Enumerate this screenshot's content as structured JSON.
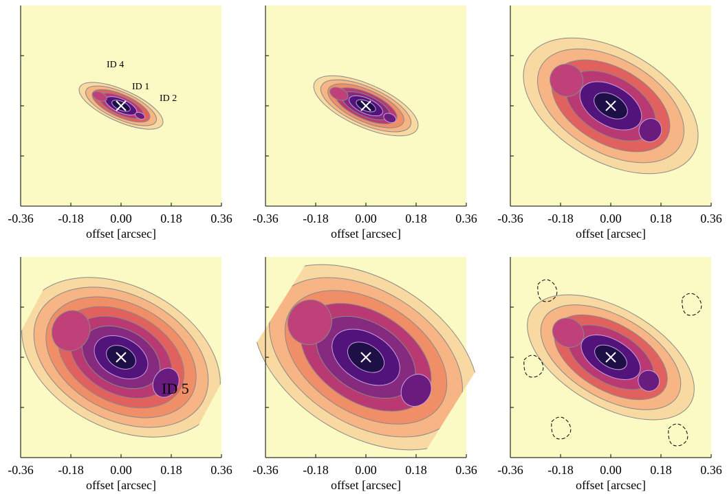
{
  "chart_data": [
    {
      "type": "contour",
      "xlabel": "offset [arcsec]",
      "xlim": [
        -0.36,
        0.36
      ],
      "ylim": [
        -0.36,
        0.36
      ],
      "xticks": [
        -0.36,
        -0.18,
        {
          "value": 0,
          "label": "0.00"
        },
        0.18,
        0.36
      ],
      "yticks": [
        -0.18,
        0,
        0.18
      ],
      "background": "#fbf9c4",
      "annotations": [
        "ID 4",
        "ID 1",
        "ID 2"
      ]
    },
    {
      "type": "contour",
      "xlabel": "offset [arcsec]",
      "xlim": [
        -0.36,
        0.36
      ],
      "ylim": [
        -0.36,
        0.36
      ],
      "xticks": [
        -0.36,
        -0.18,
        {
          "value": 0,
          "label": "0.00"
        },
        0.18,
        0.36
      ],
      "yticks": [
        -0.18,
        0,
        0.18
      ],
      "background": "#fbf9c4"
    },
    {
      "type": "contour",
      "xlabel": "offset [arcsec]",
      "xlim": [
        -0.36,
        0.36
      ],
      "ylim": [
        -0.36,
        0.36
      ],
      "xticks": [
        -0.36,
        -0.18,
        {
          "value": 0,
          "label": "0.00"
        },
        0.18,
        0.36
      ],
      "yticks": [
        -0.18,
        0,
        0.18
      ],
      "background": "#fbf9c4"
    },
    {
      "type": "contour",
      "xlabel": "offset [arcsec]",
      "xlim": [
        -0.36,
        0.36
      ],
      "ylim": [
        -0.36,
        0.36
      ],
      "xticks": [
        -0.36,
        -0.18,
        {
          "value": 0,
          "label": "0.00"
        },
        0.18,
        0.36
      ],
      "yticks": [
        -0.18,
        0,
        0.18
      ],
      "background": "#fbf9c4",
      "annotations": [
        "ID 5"
      ]
    },
    {
      "type": "contour",
      "xlabel": "offset [arcsec]",
      "xlim": [
        -0.36,
        0.36
      ],
      "ylim": [
        -0.36,
        0.36
      ],
      "xticks": [
        -0.36,
        -0.18,
        {
          "value": 0,
          "label": "0.00"
        },
        0.18,
        0.36
      ],
      "yticks": [
        -0.18,
        0,
        0.18
      ],
      "background": "#fbf9c4"
    },
    {
      "type": "contour",
      "xlabel": "offset [arcsec]",
      "xlim": [
        -0.36,
        0.36
      ],
      "ylim": [
        -0.36,
        0.36
      ],
      "xticks": [
        -0.36,
        -0.18,
        {
          "value": 0,
          "label": "0.00"
        },
        0.18,
        0.36
      ],
      "yticks": [
        -0.18,
        0,
        0.18
      ],
      "background": "#fbf9c4"
    }
  ]
}
